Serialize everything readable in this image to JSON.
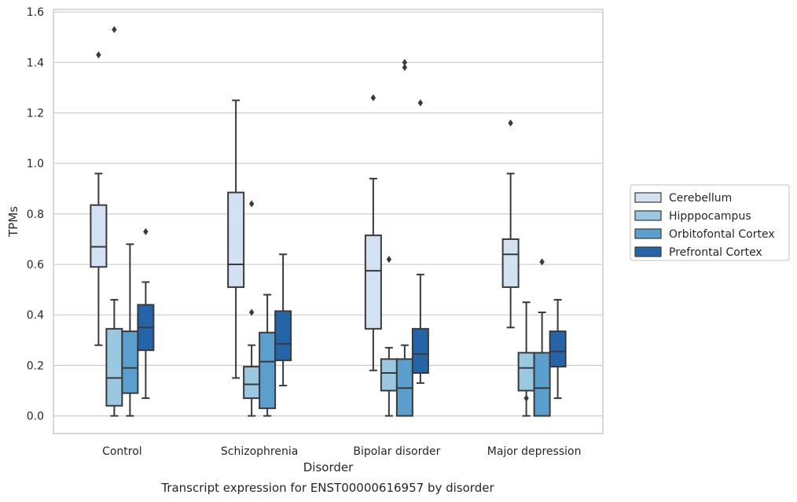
{
  "chart_data": {
    "type": "box",
    "title": "",
    "caption": "Transcript expression for ENST00000616957 by disorder",
    "xlabel": "Disorder",
    "ylabel": "TPMs",
    "ylim": [
      -0.07,
      1.61
    ],
    "yticks": [
      "0.0",
      "0.2",
      "0.4",
      "0.6",
      "0.8",
      "1.0",
      "1.2",
      "1.4",
      "1.6"
    ],
    "grid": "horizontal",
    "legend_position": "right",
    "categories": [
      "Control",
      "Schizophrenia",
      "Bipolar disorder",
      "Major depression"
    ],
    "series": [
      {
        "name": "Cerebellum",
        "color": "#d2e2f2",
        "boxes": [
          {
            "whisker_low": 0.28,
            "q1": 0.59,
            "median": 0.67,
            "q3": 0.835,
            "whisker_high": 0.96,
            "outliers": [
              1.43
            ]
          },
          {
            "whisker_low": 0.15,
            "q1": 0.51,
            "median": 0.6,
            "q3": 0.885,
            "whisker_high": 1.25,
            "outliers": []
          },
          {
            "whisker_low": 0.18,
            "q1": 0.345,
            "median": 0.575,
            "q3": 0.715,
            "whisker_high": 0.94,
            "outliers": [
              1.26
            ]
          },
          {
            "whisker_low": 0.35,
            "q1": 0.51,
            "median": 0.64,
            "q3": 0.7,
            "whisker_high": 0.96,
            "outliers": [
              1.16
            ]
          }
        ]
      },
      {
        "name": "Hipppocampus",
        "color": "#9ac8e0",
        "boxes": [
          {
            "whisker_low": 0.0,
            "q1": 0.04,
            "median": 0.15,
            "q3": 0.345,
            "whisker_high": 0.46,
            "outliers": [
              1.53
            ]
          },
          {
            "whisker_low": 0.0,
            "q1": 0.07,
            "median": 0.125,
            "q3": 0.195,
            "whisker_high": 0.28,
            "outliers": [
              0.41,
              0.84
            ]
          },
          {
            "whisker_low": 0.0,
            "q1": 0.1,
            "median": 0.17,
            "q3": 0.225,
            "whisker_high": 0.27,
            "outliers": [
              0.62
            ]
          },
          {
            "whisker_low": 0.0,
            "q1": 0.1,
            "median": 0.19,
            "q3": 0.25,
            "whisker_high": 0.45,
            "outliers": [
              0.07
            ]
          }
        ]
      },
      {
        "name": "Orbitofontal Cortex",
        "color": "#5a9fcd",
        "boxes": [
          {
            "whisker_low": 0.0,
            "q1": 0.09,
            "median": 0.19,
            "q3": 0.335,
            "whisker_high": 0.68,
            "outliers": []
          },
          {
            "whisker_low": 0.0,
            "q1": 0.03,
            "median": 0.215,
            "q3": 0.33,
            "whisker_high": 0.48,
            "outliers": []
          },
          {
            "whisker_low": 0.0,
            "q1": 0.0,
            "median": 0.11,
            "q3": 0.225,
            "whisker_high": 0.28,
            "outliers": [
              1.38,
              1.4
            ]
          },
          {
            "whisker_low": 0.0,
            "q1": 0.0,
            "median": 0.11,
            "q3": 0.25,
            "whisker_high": 0.41,
            "outliers": [
              0.61
            ]
          }
        ]
      },
      {
        "name": "Prefrontal Cortex",
        "color": "#2465a9",
        "boxes": [
          {
            "whisker_low": 0.07,
            "q1": 0.26,
            "median": 0.35,
            "q3": 0.44,
            "whisker_high": 0.53,
            "outliers": [
              0.73
            ]
          },
          {
            "whisker_low": 0.12,
            "q1": 0.22,
            "median": 0.285,
            "q3": 0.415,
            "whisker_high": 0.64,
            "outliers": []
          },
          {
            "whisker_low": 0.13,
            "q1": 0.17,
            "median": 0.245,
            "q3": 0.345,
            "whisker_high": 0.56,
            "outliers": [
              1.24
            ]
          },
          {
            "whisker_low": 0.07,
            "q1": 0.195,
            "median": 0.255,
            "q3": 0.335,
            "whisker_high": 0.46,
            "outliers": []
          }
        ]
      }
    ]
  }
}
